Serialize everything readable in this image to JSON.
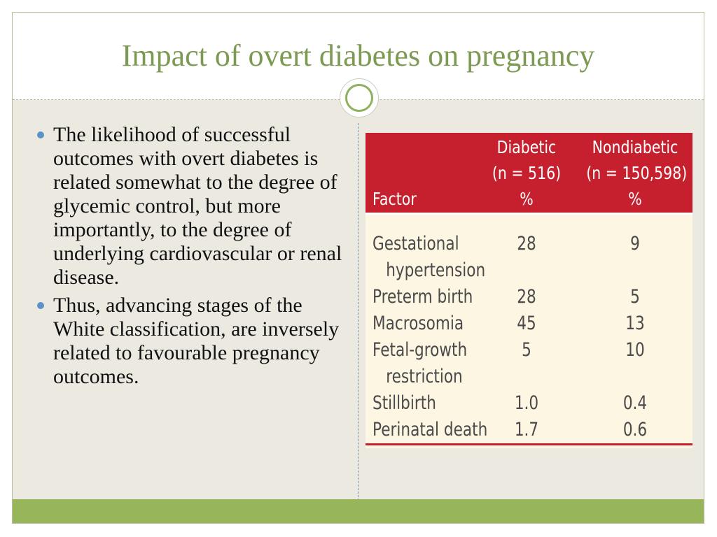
{
  "slide": {
    "title": "Impact of overt diabetes on pregnancy"
  },
  "bullets": [
    "The likelihood of successful outcomes with overt diabetes is related somewhat to the degree of glycemic control, but more importantly, to the degree of underlying cardiovascular or renal disease.",
    "Thus, advancing stages of the White classification, are inversely related to favourable pregnancy outcomes."
  ],
  "table": {
    "headers": {
      "factor": "Factor",
      "diabetic": [
        "Diabetic",
        "(n = 516)",
        "%"
      ],
      "nondiabetic": [
        "Nondiabetic",
        "(n = 150,598)",
        "%"
      ]
    },
    "rows": [
      {
        "factor": [
          "Gestational",
          "hypertension"
        ],
        "diabetic": "28",
        "nondiabetic": "9"
      },
      {
        "factor": [
          "Preterm birth"
        ],
        "diabetic": "28",
        "nondiabetic": "5"
      },
      {
        "factor": [
          "Macrosomia"
        ],
        "diabetic": "45",
        "nondiabetic": "13"
      },
      {
        "factor": [
          "Fetal-growth",
          "restriction"
        ],
        "diabetic": "5",
        "nondiabetic": "10"
      },
      {
        "factor": [
          "Stillbirth"
        ],
        "diabetic": "1.0",
        "nondiabetic": "0.4"
      },
      {
        "factor": [
          "Perinatal death"
        ],
        "diabetic": "1.7",
        "nondiabetic": "0.6"
      }
    ]
  },
  "colors": {
    "title": "#7c9a52",
    "table_header": "#c6202e",
    "bullet": "#5a93c8",
    "footer_bar": "#97b65a"
  }
}
